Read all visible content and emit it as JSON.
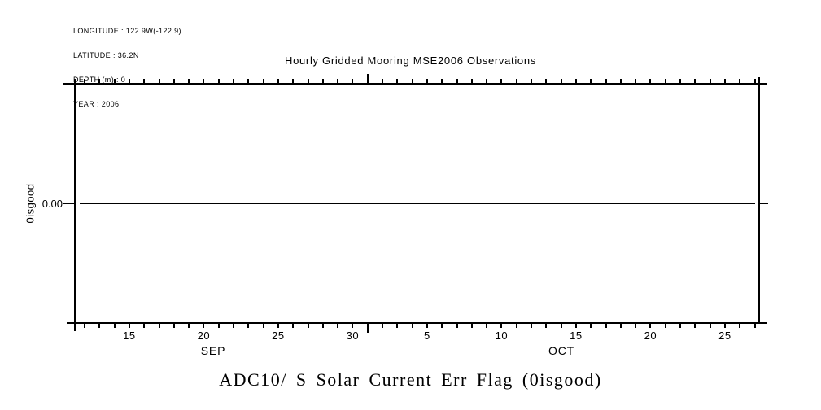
{
  "meta": {
    "lines": [
      "LONGITUDE : 122.9W(-122.9)",
      "LATITUDE : 36.2N",
      "DEPTH (m) : 0",
      "YEAR : 2006"
    ]
  },
  "chart_data": {
    "type": "line",
    "title": "Hourly Gridded Mooring MSE2006 Observations",
    "main_title": "ADC10/ S Solar Current Err Flag (0isgood)",
    "ylabel": "0isgood",
    "y_tick_label": "0.00",
    "grid": false,
    "legend": "none",
    "x_range": [
      "2006-09-11",
      "2006-10-27"
    ],
    "series": [
      {
        "name": "ADC10/ S Solar Current Err Flag (0isgood)",
        "x": [
          "2006-09-11",
          "2006-10-27"
        ],
        "y": [
          0,
          0
        ],
        "note": "constant zero line spanning the full time axis (all flags = 0 = good)"
      }
    ],
    "x_axis": {
      "unit": "day",
      "tick_count": 46,
      "first_tick_x": 104,
      "tick_spacing": 18.3,
      "long_tick_index": 19,
      "day_labels": [
        {
          "index": 3,
          "text": "15"
        },
        {
          "index": 8,
          "text": "20"
        },
        {
          "index": 13,
          "text": "25"
        },
        {
          "index": 18,
          "text": "30"
        },
        {
          "index": 23,
          "text": "5"
        },
        {
          "index": 28,
          "text": "10"
        },
        {
          "index": 33,
          "text": "15"
        },
        {
          "index": 38,
          "text": "20"
        },
        {
          "index": 43,
          "text": "25"
        }
      ],
      "month_labels": [
        {
          "text": "SEP",
          "x": 262
        },
        {
          "text": "OCT",
          "x": 690
        }
      ]
    },
    "colors": {
      "line": "#000000",
      "text": "#000000",
      "background": "#ffffff"
    }
  }
}
